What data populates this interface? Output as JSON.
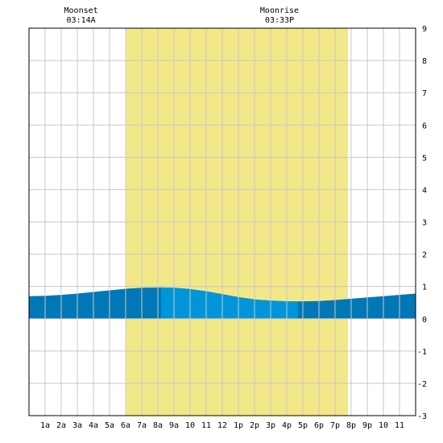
{
  "chart_data": {
    "type": "area",
    "x_tick_labels": [
      "1a",
      "2a",
      "3a",
      "4a",
      "5a",
      "6a",
      "7a",
      "8a",
      "9a",
      "10",
      "11",
      "12",
      "1p",
      "2p",
      "3p",
      "4p",
      "5p",
      "6p",
      "7p",
      "8p",
      "9p",
      "10",
      "11"
    ],
    "y_tick_labels": [
      "9",
      "8",
      "7",
      "6",
      "5",
      "4",
      "3",
      "2",
      "1",
      "0",
      "-1",
      "-2",
      "-3"
    ],
    "xlim_hours": [
      0,
      24
    ],
    "ylim": [
      -3,
      9
    ],
    "grid": true,
    "daylight_hours": [
      6.0,
      19.8
    ],
    "series": [
      {
        "x_hours": [
          0,
          1,
          2,
          3,
          4,
          5,
          6,
          7,
          8,
          8.2,
          9,
          10,
          11,
          12,
          13,
          14,
          15,
          16,
          16.7,
          17,
          18,
          19,
          20,
          21,
          22,
          23,
          24
        ],
        "values": [
          0.7,
          0.71,
          0.74,
          0.78,
          0.83,
          0.88,
          0.93,
          0.96,
          0.97,
          0.97,
          0.96,
          0.92,
          0.85,
          0.76,
          0.67,
          0.6,
          0.56,
          0.54,
          0.54,
          0.54,
          0.55,
          0.58,
          0.62,
          0.66,
          0.7,
          0.74,
          0.78
        ],
        "high_tide_span_hours": [
          8.2,
          16.7
        ]
      }
    ],
    "annotations": [
      {
        "label": "Moonset",
        "time": "03:14A",
        "x_hours": 3.23
      },
      {
        "label": "Moonrise",
        "time": "03:33P",
        "x_hours": 15.55
      }
    ],
    "colors": {
      "daylight": "#f2e88a",
      "tide_dark": "#0077b6",
      "tide_light": "#0095d8",
      "grid": "#c8c8c8",
      "frame": "#000000"
    }
  }
}
